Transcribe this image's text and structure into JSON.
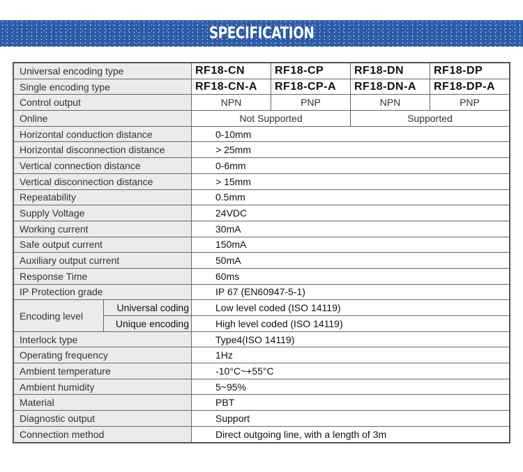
{
  "banner": {
    "title": "SPECIFICATION",
    "color": "#2a5ca8"
  },
  "models": {
    "universal_label": "Universal encoding type",
    "universal": [
      "RF18-CN",
      "RF18-CP",
      "RF18-DN",
      "RF18-DP"
    ],
    "single_label": "Single encoding type",
    "single": [
      "RF18-CN-A",
      "RF18-CP-A",
      "RF18-DN-A",
      "RF18-DP-A"
    ],
    "output_label": "Control output",
    "output": [
      "NPN",
      "PNP",
      "NPN",
      "PNP"
    ],
    "online_label": "Online",
    "online": [
      "Not Supported",
      "Supported"
    ]
  },
  "rows_a": [
    {
      "label": "Horizontal conduction distance",
      "value": "0-10mm"
    },
    {
      "label": "Horizontal disconnection distance",
      "value": "> 25mm"
    },
    {
      "label": "Vertical connection distance",
      "value": "0-6mm"
    },
    {
      "label": "Vertical disconnection distance",
      "value": "> 15mm"
    },
    {
      "label": "Repeatability",
      "value": "0.5mm"
    },
    {
      "label": "Supply Voltage",
      "value": "24VDC"
    },
    {
      "label": "Working current",
      "value": "30mA"
    },
    {
      "label": "Safe output current",
      "value": "150mA"
    },
    {
      "label": "Auxiliary output current",
      "value": "50mA"
    },
    {
      "label": "Response Time",
      "value": "60ms"
    },
    {
      "label": "IP Protection grade",
      "value": "IP 67 (EN60947-5-1)"
    }
  ],
  "encoding": {
    "label": "Encoding level",
    "rows": [
      {
        "label": "Universal coding",
        "value": "Low level coded (ISO 14119)"
      },
      {
        "label": "Unique encoding",
        "value": "High level coded (ISO 14119)"
      }
    ]
  },
  "rows_b": [
    {
      "label": "Interlock type",
      "value": "Type4(ISO 14119)"
    },
    {
      "label": "Operating frequency",
      "value": "1Hz"
    },
    {
      "label": "Ambient temperature",
      "value": "-10°C~+55°C"
    },
    {
      "label": "Ambient humidity",
      "value": "5~95%"
    },
    {
      "label": "Material",
      "value": "PBT"
    },
    {
      "label": "Diagnostic output",
      "value": "Support"
    },
    {
      "label": "Connection method",
      "value": "Direct outgoing line, with a length of 3m"
    }
  ]
}
